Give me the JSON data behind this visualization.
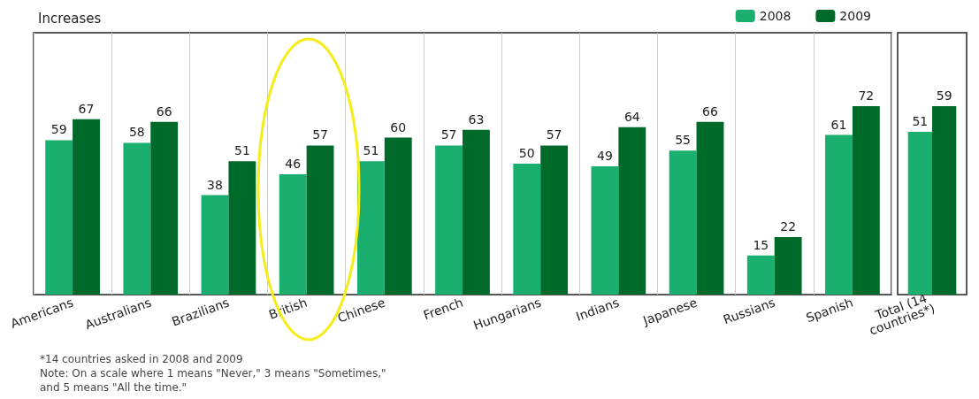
{
  "chart_data": [
    {
      "type": "bar",
      "title": "Increases",
      "categories": [
        "Americans",
        "Australians",
        "Brazilians",
        "British",
        "Chinese",
        "French",
        "Hungarians",
        "Indians",
        "Japanese",
        "Russians",
        "Spanish"
      ],
      "series": [
        {
          "name": "2008",
          "color": "#1aae6f",
          "values": [
            59,
            58,
            38,
            46,
            51,
            57,
            50,
            49,
            55,
            15,
            61
          ]
        },
        {
          "name": "2009",
          "color": "#006a2a",
          "values": [
            67,
            66,
            51,
            57,
            60,
            63,
            57,
            64,
            66,
            22,
            72
          ]
        }
      ],
      "data_labels": true,
      "legend": "top right",
      "grid": "x",
      "annotations": [
        "*14 countries asked in 2008 and 2009",
        "Note: On a scale where 1 means \"Never,\" 3 means \"Sometimes,\"",
        "and 5 means \"All the time.\""
      ]
    },
    {
      "type": "bar",
      "categories": [
        "Total (14 countries*)"
      ],
      "series": [
        {
          "color": "#1aae6f",
          "values": [
            51
          ]
        },
        {
          "color": "#006a2a",
          "values": [
            59
          ]
        }
      ],
      "data_labels": true
    }
  ]
}
